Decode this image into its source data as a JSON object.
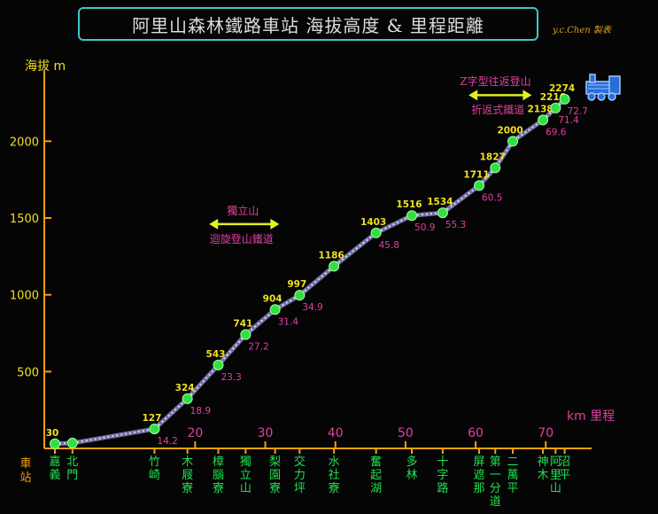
{
  "title": "阿里山森林鐵路車站 海拔高度 & 里程距離",
  "author": "y.c.Chen 製表",
  "chart_data": {
    "type": "line",
    "ylabel": "海拔 m",
    "xlabel": "km  里程",
    "ylim": [
      0,
      2400
    ],
    "xlim": [
      0,
      73
    ],
    "yticks": [
      500,
      1000,
      1500,
      2000
    ],
    "xticks": [
      20,
      30,
      40,
      50,
      60,
      70
    ],
    "station_axis_label": "車站",
    "points": [
      {
        "x": 0.0,
        "y": 30,
        "elev_label": "30",
        "km_label": ""
      },
      {
        "x": 2.5,
        "y": 35,
        "elev_label": "",
        "km_label": ""
      },
      {
        "x": 14.2,
        "y": 127,
        "elev_label": "127",
        "km_label": "14.2"
      },
      {
        "x": 18.9,
        "y": 324,
        "elev_label": "324",
        "km_label": "18.9"
      },
      {
        "x": 23.3,
        "y": 543,
        "elev_label": "543",
        "km_label": "23.3"
      },
      {
        "x": 27.2,
        "y": 741,
        "elev_label": "741",
        "km_label": "27.2"
      },
      {
        "x": 31.4,
        "y": 904,
        "elev_label": "904",
        "km_label": "31.4"
      },
      {
        "x": 34.9,
        "y": 997,
        "elev_label": "997",
        "km_label": "34.9"
      },
      {
        "x": 39.8,
        "y": 1186,
        "elev_label": "1186",
        "km_label": ""
      },
      {
        "x": 45.8,
        "y": 1403,
        "elev_label": "1403",
        "km_label": "45.8"
      },
      {
        "x": 50.9,
        "y": 1516,
        "elev_label": "1516",
        "km_label": "50.9"
      },
      {
        "x": 55.3,
        "y": 1534,
        "elev_label": "1534",
        "km_label": "55.3"
      },
      {
        "x": 60.5,
        "y": 1711,
        "elev_label": "1711",
        "km_label": "60.5"
      },
      {
        "x": 62.8,
        "y": 1827,
        "elev_label": "1827",
        "km_label": ""
      },
      {
        "x": 65.3,
        "y": 2000,
        "elev_label": "2000",
        "km_label": ""
      },
      {
        "x": 69.6,
        "y": 2138,
        "elev_label": "2138",
        "km_label": "69.6"
      },
      {
        "x": 71.4,
        "y": 2216,
        "elev_label": "2216",
        "km_label": "71.4"
      },
      {
        "x": 72.7,
        "y": 2274,
        "elev_label": "2274",
        "km_label": "72.7"
      }
    ],
    "stations": [
      {
        "name": "嘉義",
        "x": 0.0
      },
      {
        "name": "北門",
        "x": 2.5
      },
      {
        "name": "竹崎",
        "x": 14.2
      },
      {
        "name": "木屐寮",
        "x": 18.9
      },
      {
        "name": "樟腦寮",
        "x": 23.3
      },
      {
        "name": "獨立山",
        "x": 27.2
      },
      {
        "name": "梨園寮",
        "x": 31.4
      },
      {
        "name": "交力坪",
        "x": 34.9
      },
      {
        "name": "水社寮",
        "x": 39.8
      },
      {
        "name": "奮起湖",
        "x": 45.8
      },
      {
        "name": "多林",
        "x": 50.9
      },
      {
        "name": "十字路",
        "x": 55.3
      },
      {
        "name": "屏遮那",
        "x": 60.5
      },
      {
        "name": "第一分道",
        "x": 62.8
      },
      {
        "name": "二萬平",
        "x": 65.3
      },
      {
        "name": "神木",
        "x": 69.6
      },
      {
        "name": "阿里山",
        "x": 71.4
      },
      {
        "name": "沼平",
        "x": 72.7
      }
    ],
    "annotations": [
      {
        "line1": "獨立山",
        "line2": "迴旋登山鐵道",
        "x_from": 22,
        "x_to": 32,
        "y": 1460
      },
      {
        "line1": "Z字型往返登山",
        "line2": "折返式鐵道",
        "x_from": 59,
        "x_to": 68,
        "y": 2300
      }
    ],
    "colors": {
      "axis": "#f0a010",
      "ytick_label": "#f0e020",
      "xtick_label": "#e040a0",
      "point": "#30e040",
      "elev_label": "#f0e020",
      "km_label": "#e040a0",
      "track": "#7070a0",
      "arrow": "#e0f020"
    }
  }
}
